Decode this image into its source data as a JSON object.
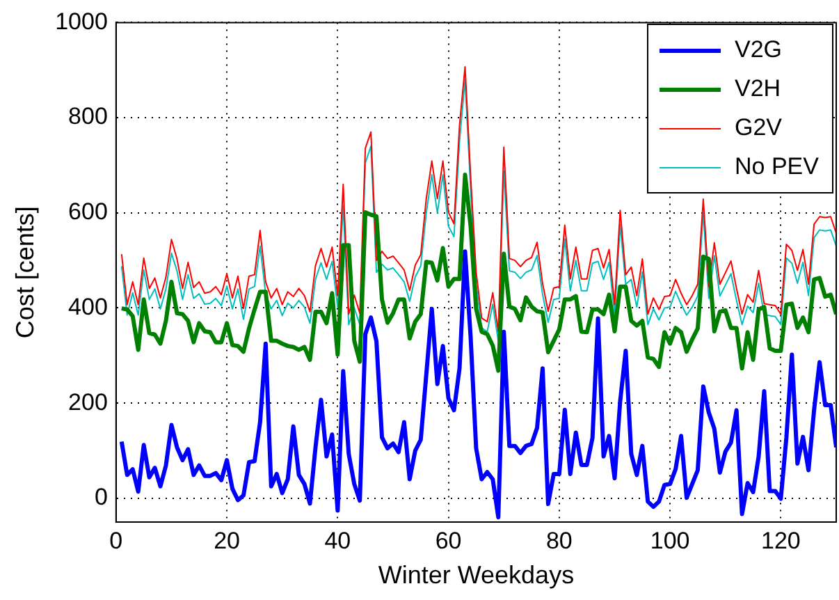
{
  "chart_data": {
    "type": "line",
    "xlabel": "Winter Weekdays",
    "ylabel": "Cost [cents]",
    "x": [
      1,
      2,
      3,
      4,
      5,
      6,
      7,
      8,
      9,
      10,
      11,
      12,
      13,
      14,
      15,
      16,
      17,
      18,
      19,
      20,
      21,
      22,
      23,
      24,
      25,
      26,
      27,
      28,
      29,
      30,
      31,
      32,
      33,
      34,
      35,
      36,
      37,
      38,
      39,
      40,
      41,
      42,
      43,
      44,
      45,
      46,
      47,
      48,
      49,
      50,
      51,
      52,
      53,
      54,
      55,
      56,
      57,
      58,
      59,
      60,
      61,
      62,
      63,
      64,
      65,
      66,
      67,
      68,
      69,
      70,
      71,
      72,
      73,
      74,
      75,
      76,
      77,
      78,
      79,
      80,
      81,
      82,
      83,
      84,
      85,
      86,
      87,
      88,
      89,
      90,
      91,
      92,
      93,
      94,
      95,
      96,
      97,
      98,
      99,
      100,
      101,
      102,
      103,
      104,
      105,
      106,
      107,
      108,
      109,
      110,
      111,
      112,
      113,
      114,
      115,
      116,
      117,
      118,
      119,
      120,
      121,
      122,
      123,
      124,
      125,
      126,
      127,
      128,
      129,
      130
    ],
    "series": [
      {
        "name": "V2G",
        "color": "#0000ff",
        "values": [
          119,
          49,
          61,
          14,
          112,
          44,
          64,
          25,
          69,
          154,
          107,
          80,
          103,
          49,
          69,
          47,
          47,
          53,
          38,
          80,
          20,
          -4,
          6,
          76,
          78,
          160,
          325,
          25,
          51,
          11,
          40,
          151,
          49,
          30,
          -11,
          107,
          207,
          88,
          134,
          -26,
          267,
          93,
          30,
          -5,
          345,
          380,
          330,
          128,
          105,
          115,
          97,
          160,
          40,
          100,
          123,
          260,
          398,
          240,
          320,
          210,
          185,
          273,
          519,
          340,
          105,
          40,
          55,
          40,
          -40,
          350,
          110,
          110,
          95,
          110,
          114,
          148,
          273,
          -12,
          51,
          51,
          186,
          51,
          138,
          70,
          70,
          127,
          378,
          88,
          131,
          42,
          204,
          310,
          93,
          49,
          110,
          -7,
          -18,
          -7,
          28,
          30,
          61,
          131,
          1,
          30,
          59,
          235,
          180,
          146,
          54,
          98,
          117,
          185,
          -33,
          32,
          13,
          88,
          225,
          15,
          15,
          -1,
          127,
          302,
          73,
          129,
          59,
          185,
          286,
          196,
          196,
          107
        ]
      },
      {
        "name": "V2H",
        "color": "#008000",
        "values": [
          399,
          397,
          383,
          312,
          418,
          347,
          344,
          325,
          373,
          455,
          389,
          387,
          373,
          328,
          368,
          351,
          349,
          328,
          328,
          368,
          322,
          320,
          308,
          357,
          397,
          434,
          434,
          331,
          331,
          325,
          320,
          318,
          312,
          318,
          291,
          392,
          392,
          368,
          431,
          302,
          532,
          532,
          331,
          287,
          601,
          596,
          593,
          418,
          369,
          389,
          418,
          418,
          336,
          371,
          387,
          497,
          495,
          458,
          526,
          445,
          461,
          461,
          680,
          572,
          398,
          350,
          345,
          321,
          268,
          514,
          403,
          398,
          374,
          422,
          403,
          393,
          391,
          307,
          331,
          355,
          418,
          418,
          425,
          350,
          349,
          397,
          397,
          387,
          428,
          351,
          445,
          445,
          373,
          363,
          373,
          296,
          293,
          276,
          349,
          325,
          358,
          349,
          308,
          334,
          357,
          508,
          503,
          351,
          392,
          395,
          358,
          358,
          273,
          349,
          291,
          397,
          402,
          315,
          310,
          310,
          407,
          409,
          358,
          380,
          349,
          460,
          463,
          424,
          428,
          387
        ]
      },
      {
        "name": "G2V",
        "color": "#ff0000",
        "values": [
          513,
          407,
          455,
          407,
          505,
          441,
          463,
          421,
          465,
          544,
          503,
          441,
          496,
          443,
          455,
          431,
          434,
          445,
          428,
          472,
          421,
          467,
          399,
          467,
          470,
          563,
          455,
          421,
          441,
          407,
          434,
          424,
          441,
          426,
          392,
          489,
          525,
          486,
          528,
          426,
          660,
          387,
          427,
          389,
          736,
          770,
          500,
          519,
          504,
          509,
          495,
          480,
          437,
          490,
          512,
          630,
          709,
          630,
          709,
          601,
          577,
          784,
          907,
          678,
          475,
          379,
          371,
          432,
          350,
          738,
          504,
          500,
          487,
          500,
          506,
          538,
          451,
          393,
          442,
          445,
          574,
          461,
          528,
          461,
          461,
          521,
          525,
          484,
          523,
          407,
          605,
          470,
          486,
          426,
          503,
          387,
          421,
          397,
          424,
          426,
          460,
          431,
          407,
          426,
          450,
          629,
          445,
          537,
          450,
          474,
          499,
          441,
          387,
          428,
          412,
          479,
          409,
          407,
          405,
          387,
          534,
          521,
          479,
          523,
          450,
          576,
          592,
          590,
          592,
          557
        ]
      },
      {
        "name": "No PEV",
        "color": "#00bfbf",
        "values": [
          488,
          385,
          432,
          385,
          480,
          418,
          440,
          398,
          440,
          515,
          478,
          418,
          470,
          420,
          430,
          408,
          410,
          420,
          405,
          446,
          398,
          440,
          376,
          440,
          445,
          530,
          430,
          398,
          416,
          384,
          410,
          400,
          416,
          402,
          368,
          460,
          495,
          460,
          498,
          402,
          615,
          365,
          400,
          365,
          705,
          740,
          475,
          492,
          480,
          484,
          470,
          455,
          414,
          465,
          488,
          600,
          680,
          600,
          680,
          572,
          550,
          750,
          880,
          650,
          450,
          358,
          350,
          408,
          330,
          688,
          478,
          475,
          462,
          475,
          480,
          510,
          428,
          370,
          418,
          420,
          545,
          436,
          500,
          436,
          436,
          494,
          498,
          460,
          496,
          385,
          575,
          450,
          460,
          402,
          476,
          365,
          398,
          375,
          400,
          402,
          435,
          408,
          385,
          402,
          425,
          600,
          420,
          510,
          425,
          448,
          472,
          416,
          365,
          404,
          390,
          452,
          386,
          384,
          382,
          365,
          505,
          494,
          452,
          496,
          426,
          548,
          564,
          562,
          564,
          530
        ]
      }
    ],
    "xlim": [
      0,
      130
    ],
    "xticks": [
      0,
      20,
      40,
      60,
      80,
      100,
      120
    ],
    "ylim": [
      -50,
      1000
    ],
    "yticks": [
      0,
      200,
      400,
      600,
      800,
      1000
    ],
    "grid": true,
    "legend": "top right",
    "marker": "none",
    "line_style": "solid"
  }
}
